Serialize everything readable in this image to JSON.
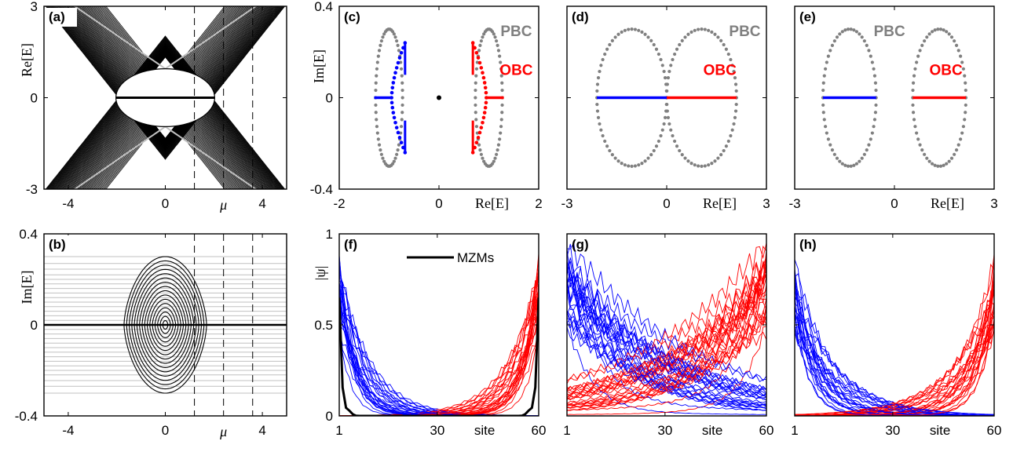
{
  "colors": {
    "pbc": "#808080",
    "left": "#0000ff",
    "right": "#ff0000",
    "bulk": "#000000",
    "guide": "#c0c0c0"
  },
  "chart_data": [
    {
      "panel": "(a)",
      "type": "line",
      "xlabel": "μ",
      "ylabel": "Re[E]",
      "xlim": [
        -5,
        5
      ],
      "ylim": [
        -3,
        3
      ],
      "xticks": [
        "-4",
        "0",
        "4"
      ],
      "yticks": [
        "-3",
        "0",
        "3"
      ],
      "markers": [
        1.2,
        2.4,
        3.6
      ],
      "gap_half_width": 1.1
    },
    {
      "panel": "(b)",
      "type": "line",
      "xlabel": "μ",
      "ylabel": "Im[E]",
      "xlim": [
        -5,
        5
      ],
      "ylim": [
        -0.4,
        0.4
      ],
      "xticks": [
        "-4",
        "0",
        "4"
      ],
      "yticks": [
        "-0.4",
        "0",
        "0.4"
      ],
      "markers": [
        1.2,
        2.4,
        3.6
      ],
      "loop_half_width": 1.7,
      "loop_height": 0.3
    },
    {
      "panel": "(c)",
      "type": "scatter",
      "xlabel": "Re[E]",
      "ylabel": "Im[E]",
      "xlim": [
        -2,
        2
      ],
      "ylim": [
        -0.4,
        0.4
      ],
      "xticks": [
        "-2",
        "0",
        "2"
      ],
      "yticks": [
        "-0.4",
        "0",
        "0.4"
      ],
      "pbc_label": "PBC",
      "obc_label": "OBC",
      "pbc_loops": [
        {
          "center": -1.0,
          "half_width": 0.27,
          "half_height": 0.3
        },
        {
          "center": 1.0,
          "half_width": 0.27,
          "half_height": 0.3
        }
      ],
      "obc_left_branch": {
        "arc_x": [
          -0.68,
          -0.95
        ],
        "arc_y": [
          -0.24,
          0.24
        ],
        "bar_x": [
          -1.3,
          -0.95
        ]
      },
      "obc_right_branch": {
        "arc_x": [
          0.68,
          0.95
        ],
        "arc_y": [
          -0.24,
          0.24
        ],
        "bar_x": [
          0.95,
          1.3
        ]
      },
      "zero_mode": [
        0,
        0
      ]
    },
    {
      "panel": "(d)",
      "type": "scatter",
      "xlabel": "Re[E]",
      "ylabel": "",
      "xlim": [
        -3,
        3
      ],
      "ylim": [
        -0.4,
        0.4
      ],
      "xticks": [
        "-3",
        "0",
        "3"
      ],
      "pbc_label": "PBC",
      "obc_label": "OBC",
      "pbc_loops": [
        {
          "center": -1.05,
          "half_width": 1.05,
          "half_height": 0.3
        },
        {
          "center": 1.05,
          "half_width": 1.05,
          "half_height": 0.3
        }
      ],
      "obc_left_bar": [
        -2.1,
        0
      ],
      "obc_right_bar": [
        0,
        2.1
      ]
    },
    {
      "panel": "(e)",
      "type": "scatter",
      "xlabel": "Re[E]",
      "ylabel": "",
      "xlim": [
        -3,
        3
      ],
      "ylim": [
        -0.4,
        0.4
      ],
      "xticks": [
        "-3",
        "0",
        "3"
      ],
      "pbc_label": "PBC",
      "obc_label": "OBC",
      "pbc_loops": [
        {
          "center": -1.35,
          "half_width": 0.8,
          "half_height": 0.3
        },
        {
          "center": 1.35,
          "half_width": 0.8,
          "half_height": 0.3
        }
      ],
      "obc_left_bar": [
        -2.15,
        -0.55
      ],
      "obc_right_bar": [
        0.55,
        2.15
      ]
    },
    {
      "panel": "(f)",
      "type": "line",
      "xlabel": "site",
      "ylabel": "|ψ|",
      "xlim": [
        1,
        60
      ],
      "ylim": [
        0,
        1
      ],
      "xticks": [
        "1",
        "30",
        "60"
      ],
      "yticks": [
        "0",
        "0.5",
        "1"
      ],
      "legend": "MZMs",
      "mzm_peak": 0.65
    },
    {
      "panel": "(g)",
      "type": "line",
      "xlabel": "site",
      "ylabel": "",
      "xlim": [
        1,
        60
      ],
      "ylim": [
        0,
        1
      ],
      "xticks": [
        "1",
        "30",
        "60"
      ]
    },
    {
      "panel": "(h)",
      "type": "line",
      "xlabel": "site",
      "ylabel": "",
      "xlim": [
        1,
        60
      ],
      "ylim": [
        0,
        1
      ],
      "xticks": [
        "1",
        "30",
        "60"
      ]
    }
  ]
}
